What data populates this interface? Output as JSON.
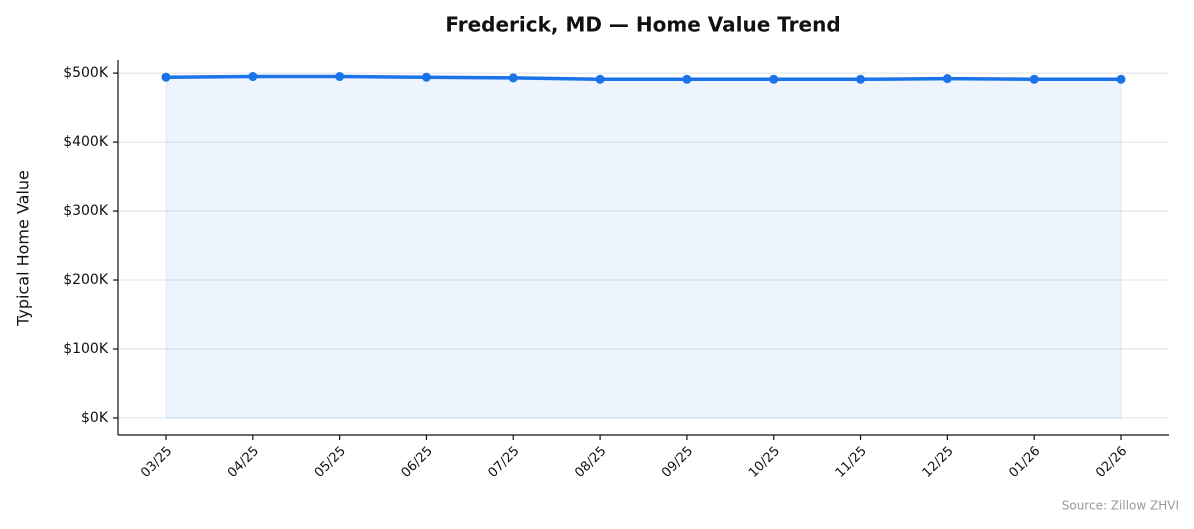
{
  "chart_data": {
    "type": "line",
    "title": "Frederick, MD — Home Value Trend",
    "ylabel": "Typical Home Value",
    "source": "Source: Zillow ZHVI",
    "categories": [
      "03/25",
      "04/25",
      "05/25",
      "06/25",
      "07/25",
      "08/25",
      "09/25",
      "10/25",
      "11/25",
      "12/25",
      "01/26",
      "02/26"
    ],
    "values": [
      494000,
      495000,
      495000,
      494000,
      493000,
      491000,
      491000,
      491000,
      491000,
      492000,
      491000,
      491000
    ],
    "color": "#1a73e8",
    "area": true,
    "ylim": [
      -24700,
      519000
    ],
    "yticks": [
      {
        "value": 0,
        "label": "$0K"
      },
      {
        "value": 100000,
        "label": "$100K"
      },
      {
        "value": 200000,
        "label": "$200K"
      },
      {
        "value": 300000,
        "label": "$300K"
      },
      {
        "value": 400000,
        "label": "$400K"
      },
      {
        "value": 500000,
        "label": "$500K"
      }
    ],
    "grid": true
  }
}
